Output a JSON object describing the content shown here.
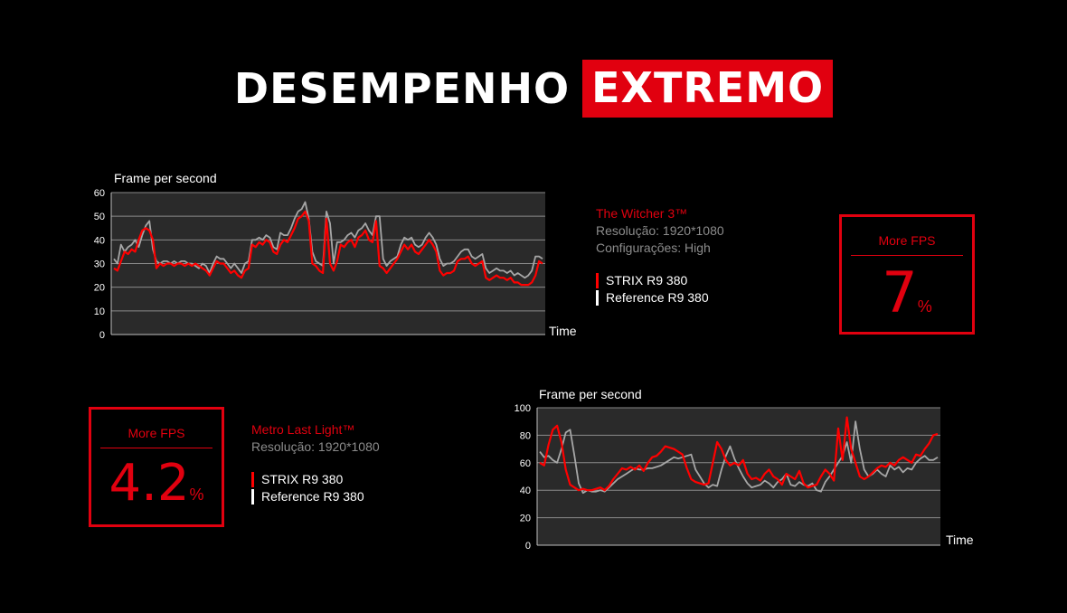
{
  "header": {
    "word1": "DESEMPENHO",
    "word2": "EXTREMO"
  },
  "colors": {
    "accent": "#e1000f",
    "strix": "#ff0000",
    "reference": "#a6a6a6",
    "plot_bg": "#2a2a2a",
    "grid": "#8a8a8a"
  },
  "witcher": {
    "game": "The Witcher 3™",
    "resolution": "Resolução: 1920*1080",
    "settings": "Configurações: High",
    "legend": {
      "strix": "STRIX R9 380",
      "reference": "Reference R9 380"
    },
    "more_fps_label": "More FPS",
    "more_fps_value": "7",
    "more_fps_unit": "%"
  },
  "metro": {
    "game": "Metro Last Light™",
    "resolution": "Resolução: 1920*1080",
    "legend": {
      "strix": "STRIX R9 380",
      "reference": "Reference R9 380"
    },
    "more_fps_label": "More FPS",
    "more_fps_value": "4.2",
    "more_fps_unit": "%"
  },
  "chart_data": [
    {
      "type": "line",
      "title": "Frame per second",
      "xlabel": "Time",
      "ylabel": "",
      "ylim": [
        0,
        60
      ],
      "yticks": [
        "0",
        "10",
        "20",
        "30",
        "40",
        "50",
        "60"
      ],
      "grid": true,
      "series": [
        {
          "name": "STRIX R9 380",
          "values": [
            28,
            27,
            31,
            35,
            34,
            36,
            35,
            40,
            44,
            45,
            44,
            40,
            28,
            30,
            29,
            30,
            30,
            29,
            30,
            30,
            29,
            30,
            29,
            30,
            29,
            28,
            27,
            25,
            28,
            31,
            30,
            30,
            28,
            26,
            27,
            25,
            24,
            27,
            28,
            38,
            37,
            39,
            38,
            40,
            39,
            35,
            34,
            38,
            40,
            39,
            42,
            45,
            49,
            50,
            52,
            48,
            30,
            29,
            27,
            26,
            49,
            30,
            27,
            31,
            38,
            37,
            39,
            40,
            37,
            41,
            42,
            44,
            40,
            39,
            48,
            29,
            28,
            26,
            28,
            30,
            32,
            35,
            38,
            36,
            38,
            35,
            34,
            36,
            38,
            40,
            38,
            35,
            27,
            25,
            26,
            26,
            27,
            31,
            32,
            32,
            33,
            30,
            29,
            30,
            31,
            24,
            23,
            24,
            25,
            24,
            24,
            23,
            24,
            22,
            22,
            21,
            21,
            21,
            22,
            25,
            31,
            30
          ]
        },
        {
          "name": "Reference R9 380",
          "values": [
            32,
            30,
            38,
            35,
            37,
            38,
            40,
            37,
            42,
            46,
            48,
            36,
            31,
            30,
            31,
            31,
            30,
            31,
            30,
            31,
            31,
            30,
            30,
            29,
            28,
            30,
            29,
            26,
            30,
            33,
            32,
            32,
            30,
            28,
            30,
            28,
            26,
            30,
            31,
            40,
            40,
            41,
            40,
            42,
            41,
            37,
            36,
            43,
            42,
            42,
            45,
            49,
            52,
            53,
            56,
            49,
            35,
            31,
            30,
            29,
            52,
            47,
            30,
            39,
            39,
            40,
            42,
            43,
            41,
            44,
            45,
            47,
            44,
            42,
            50,
            50,
            32,
            29,
            31,
            32,
            33,
            38,
            41,
            40,
            41,
            38,
            37,
            38,
            41,
            43,
            41,
            38,
            32,
            29,
            30,
            30,
            31,
            33,
            35,
            36,
            36,
            33,
            32,
            33,
            34,
            28,
            26,
            27,
            28,
            27,
            27,
            26,
            27,
            25,
            26,
            25,
            24,
            25,
            27,
            33,
            33,
            32
          ]
        }
      ]
    },
    {
      "type": "line",
      "title": "Frame per second",
      "xlabel": "Time",
      "ylabel": "",
      "ylim": [
        0,
        100
      ],
      "yticks": [
        "0",
        "20",
        "40",
        "60",
        "80",
        "100"
      ],
      "grid": true,
      "series": [
        {
          "name": "STRIX R9 380",
          "values": [
            60,
            58,
            73,
            84,
            87,
            75,
            55,
            44,
            42,
            40,
            41,
            40,
            40,
            41,
            42,
            40,
            43,
            48,
            52,
            56,
            55,
            57,
            55,
            58,
            54,
            60,
            64,
            65,
            68,
            72,
            71,
            70,
            68,
            66,
            56,
            48,
            46,
            45,
            44,
            45,
            60,
            75,
            70,
            62,
            58,
            60,
            58,
            62,
            52,
            48,
            49,
            47,
            52,
            55,
            50,
            48,
            44,
            52,
            50,
            48,
            54,
            45,
            42,
            43,
            44,
            50,
            55,
            52,
            47,
            85,
            62,
            93,
            70,
            60,
            50,
            48,
            50,
            53,
            56,
            58,
            57,
            60,
            58,
            62,
            64,
            62,
            60,
            66,
            65,
            70,
            74,
            80,
            81
          ]
        },
        {
          "name": "Reference R9 380",
          "values": [
            68,
            64,
            65,
            62,
            60,
            70,
            82,
            84,
            65,
            45,
            38,
            40,
            39,
            39,
            40,
            39,
            42,
            45,
            48,
            50,
            52,
            54,
            56,
            55,
            55,
            56,
            56,
            57,
            58,
            60,
            62,
            64,
            63,
            64,
            65,
            66,
            55,
            50,
            45,
            42,
            44,
            43,
            55,
            65,
            72,
            63,
            56,
            50,
            45,
            42,
            43,
            44,
            47,
            45,
            42,
            46,
            48,
            52,
            44,
            43,
            46,
            44,
            43,
            45,
            40,
            39,
            46,
            50,
            55,
            60,
            65,
            75,
            60,
            90,
            70,
            55,
            50,
            52,
            55,
            52,
            50,
            58,
            55,
            57,
            53,
            56,
            55,
            60,
            63,
            65,
            62,
            62,
            64
          ]
        }
      ]
    }
  ]
}
